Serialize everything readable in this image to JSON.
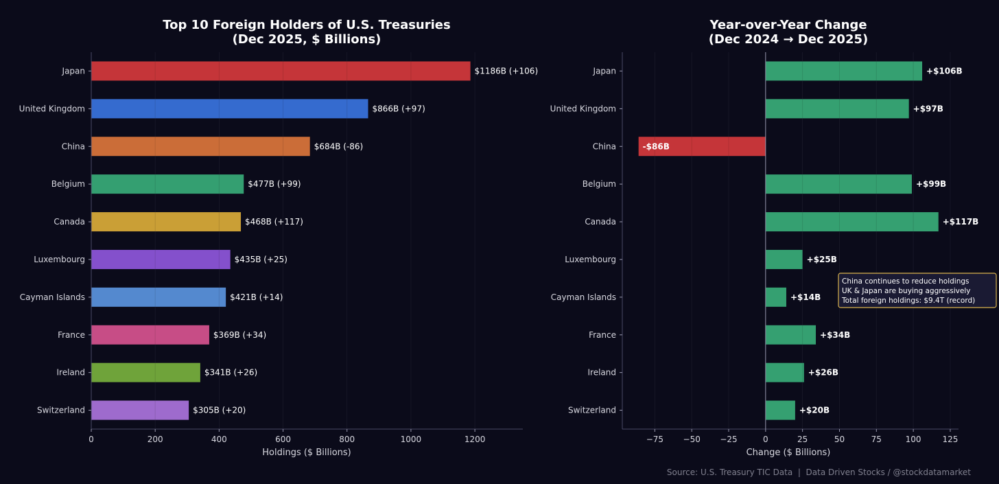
{
  "chart_data": [
    {
      "type": "bar",
      "orientation": "horizontal",
      "title": "Top 10 Foreign Holders of U.S. Treasuries",
      "subtitle": "(Dec 2025, $ Billions)",
      "xlabel": "Holdings ($ Billions)",
      "xlim": [
        0,
        1350
      ],
      "xticks": [
        0,
        200,
        400,
        600,
        800,
        1000,
        1200
      ],
      "grid": true,
      "categories": [
        "Japan",
        "United Kingdom",
        "China",
        "Belgium",
        "Canada",
        "Luxembourg",
        "Cayman Islands",
        "France",
        "Ireland",
        "Switzerland"
      ],
      "values": [
        1186,
        866,
        684,
        477,
        468,
        435,
        421,
        369,
        341,
        305
      ],
      "colors": [
        "#d63a3c",
        "#3a74de",
        "#dc763b",
        "#38ad78",
        "#dbad38",
        "#8f57db",
        "#5b95de",
        "#d8548f",
        "#78b13d",
        "#ab74dc"
      ],
      "data_labels": [
        "$1186B (+106)",
        "$866B (+97)",
        "$684B (-86)",
        "$477B (+99)",
        "$468B (+117)",
        "$435B (+25)",
        "$421B (+14)",
        "$369B (+34)",
        "$341B (+26)",
        "$305B (+20)"
      ]
    },
    {
      "type": "bar",
      "orientation": "horizontal",
      "title": "Year-over-Year Change",
      "subtitle": "(Dec 2024 → Dec 2025)",
      "xlabel": "Change ($ Billions)",
      "xlim": [
        -97,
        130.6
      ],
      "xticks": [
        -75,
        -50,
        -25,
        0,
        25,
        50,
        75,
        100,
        125
      ],
      "xtick_labels": [
        "−75",
        "−50",
        "−25",
        "0",
        "25",
        "50",
        "75",
        "100",
        "125"
      ],
      "grid": true,
      "categories": [
        "Japan",
        "United Kingdom",
        "China",
        "Belgium",
        "Canada",
        "Luxembourg",
        "Cayman Islands",
        "France",
        "Ireland",
        "Switzerland"
      ],
      "values": [
        106,
        97,
        -86,
        99,
        117,
        25,
        14,
        34,
        26,
        20
      ],
      "positive_color": "#3aae78",
      "negative_color": "#d63a3c",
      "data_labels": [
        "+$106B",
        "+$97B",
        "-$86B",
        "+$99B",
        "+$117B",
        "+$25B",
        "+$14B",
        "+$34B",
        "+$26B",
        "+$20B"
      ],
      "annotation": [
        "China continues to reduce holdings",
        "UK & Japan are buying aggressively",
        "Total foreign holdings: $9.4T (record)"
      ]
    }
  ],
  "source": "Source: U.S. Treasury TIC Data  |  Data Driven Stocks / @stockdatamarket"
}
